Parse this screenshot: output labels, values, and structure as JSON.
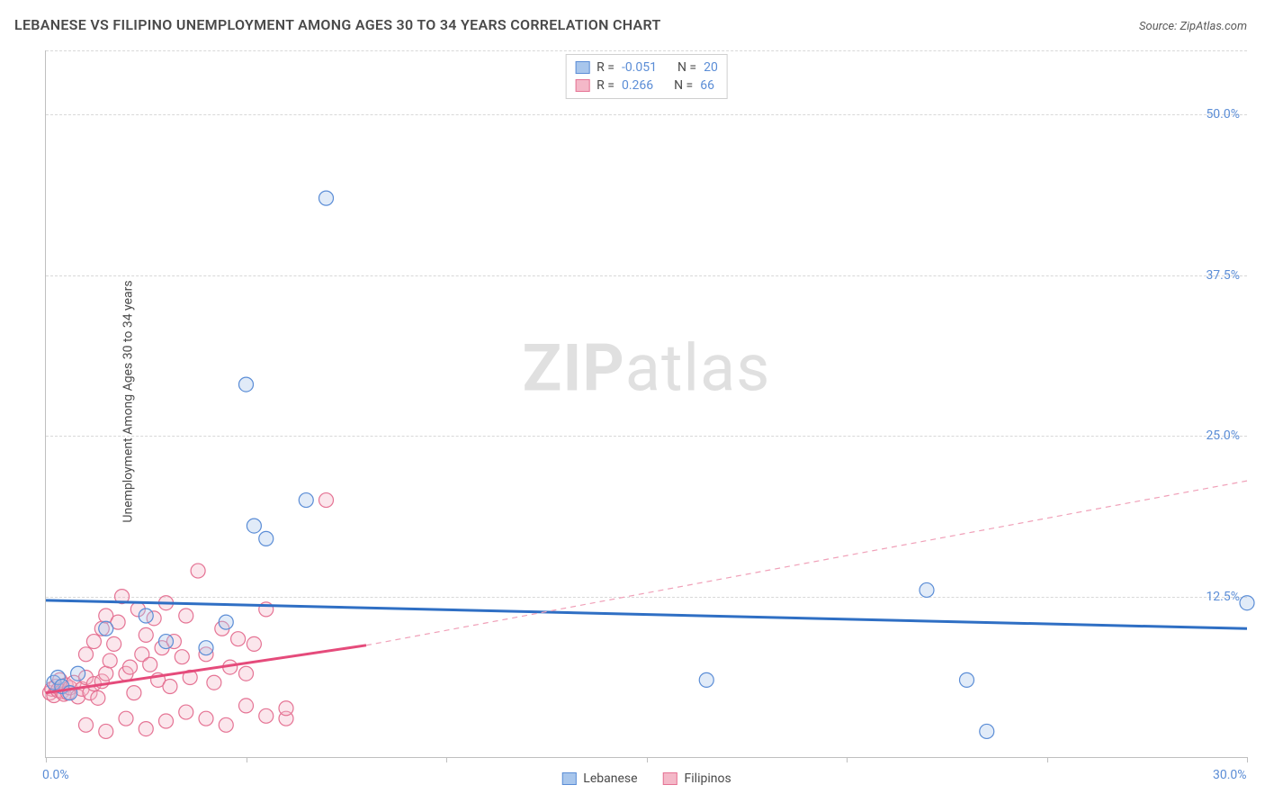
{
  "title": "LEBANESE VS FILIPINO UNEMPLOYMENT AMONG AGES 30 TO 34 YEARS CORRELATION CHART",
  "source_label": "Source: ",
  "source_value": "ZipAtlas.com",
  "y_axis_label": "Unemployment Among Ages 30 to 34 years",
  "watermark_zip": "ZIP",
  "watermark_atlas": "atlas",
  "chart": {
    "type": "scatter",
    "xlim": [
      0,
      30
    ],
    "ylim": [
      0,
      55
    ],
    "xtick_positions": [
      0,
      5,
      10,
      15,
      20,
      25,
      30
    ],
    "xtick_labels_visible": {
      "0": "0.0%",
      "30": "30.0%"
    },
    "ytick_positions": [
      12.5,
      25.0,
      37.5,
      50.0,
      55.0
    ],
    "ytick_labels_visible": {
      "12.5": "12.5%",
      "25.0": "25.0%",
      "37.5": "37.5%",
      "50.0": "50.0%"
    },
    "grid_color": "#d8d8d8",
    "grid_dash": "4,4",
    "background_color": "#ffffff",
    "marker_radius": 8,
    "marker_stroke_width": 1.2,
    "marker_fill_opacity": 0.35,
    "series": [
      {
        "name": "Lebanese",
        "color_fill": "#a8c6ec",
        "color_stroke": "#5b8dd6",
        "R": "-0.051",
        "N": "20",
        "points": [
          [
            0.2,
            5.8
          ],
          [
            0.3,
            6.2
          ],
          [
            0.4,
            5.5
          ],
          [
            0.6,
            5.0
          ],
          [
            0.8,
            6.5
          ],
          [
            1.5,
            10.0
          ],
          [
            2.5,
            11.0
          ],
          [
            3.0,
            9.0
          ],
          [
            4.0,
            8.5
          ],
          [
            4.5,
            10.5
          ],
          [
            5.0,
            29.0
          ],
          [
            5.2,
            18.0
          ],
          [
            5.5,
            17.0
          ],
          [
            6.5,
            20.0
          ],
          [
            7.0,
            43.5
          ],
          [
            16.5,
            6.0
          ],
          [
            22.0,
            13.0
          ],
          [
            23.0,
            6.0
          ],
          [
            23.5,
            2.0
          ],
          [
            30.0,
            12.0
          ]
        ],
        "trend_line": {
          "x1": 0,
          "y1": 12.2,
          "x2": 30,
          "y2": 10.0,
          "color": "#2f6fc4",
          "width": 3,
          "dash": "none"
        },
        "trend_dash_extension": null
      },
      {
        "name": "Filipinos",
        "color_fill": "#f4b8c8",
        "color_stroke": "#e57394",
        "R": "0.266",
        "N": "66",
        "points": [
          [
            0.1,
            5.0
          ],
          [
            0.15,
            5.3
          ],
          [
            0.2,
            4.8
          ],
          [
            0.25,
            5.5
          ],
          [
            0.3,
            5.2
          ],
          [
            0.35,
            6.0
          ],
          [
            0.4,
            5.1
          ],
          [
            0.45,
            4.9
          ],
          [
            0.5,
            5.6
          ],
          [
            0.55,
            5.0
          ],
          [
            0.6,
            5.4
          ],
          [
            0.7,
            5.8
          ],
          [
            0.8,
            4.7
          ],
          [
            0.9,
            5.3
          ],
          [
            1.0,
            6.2
          ],
          [
            1.1,
            5.0
          ],
          [
            1.2,
            5.7
          ],
          [
            1.3,
            4.6
          ],
          [
            1.4,
            5.9
          ],
          [
            1.5,
            6.5
          ],
          [
            1.0,
            8.0
          ],
          [
            1.2,
            9.0
          ],
          [
            1.4,
            10.0
          ],
          [
            1.5,
            11.0
          ],
          [
            1.6,
            7.5
          ],
          [
            1.7,
            8.8
          ],
          [
            1.8,
            10.5
          ],
          [
            1.9,
            12.5
          ],
          [
            2.0,
            6.5
          ],
          [
            2.1,
            7.0
          ],
          [
            2.2,
            5.0
          ],
          [
            2.3,
            11.5
          ],
          [
            2.4,
            8.0
          ],
          [
            2.5,
            9.5
          ],
          [
            2.6,
            7.2
          ],
          [
            2.7,
            10.8
          ],
          [
            2.8,
            6.0
          ],
          [
            2.9,
            8.5
          ],
          [
            3.0,
            12.0
          ],
          [
            3.1,
            5.5
          ],
          [
            3.2,
            9.0
          ],
          [
            3.4,
            7.8
          ],
          [
            3.5,
            11.0
          ],
          [
            3.6,
            6.2
          ],
          [
            3.8,
            14.5
          ],
          [
            4.0,
            8.0
          ],
          [
            4.2,
            5.8
          ],
          [
            4.4,
            10.0
          ],
          [
            4.6,
            7.0
          ],
          [
            4.8,
            9.2
          ],
          [
            5.0,
            6.5
          ],
          [
            5.2,
            8.8
          ],
          [
            5.5,
            11.5
          ],
          [
            1.0,
            2.5
          ],
          [
            1.5,
            2.0
          ],
          [
            2.0,
            3.0
          ],
          [
            2.5,
            2.2
          ],
          [
            3.0,
            2.8
          ],
          [
            3.5,
            3.5
          ],
          [
            4.0,
            3.0
          ],
          [
            4.5,
            2.5
          ],
          [
            5.0,
            4.0
          ],
          [
            5.5,
            3.2
          ],
          [
            6.0,
            3.0
          ],
          [
            6.0,
            3.8
          ],
          [
            7.0,
            20.0
          ]
        ],
        "trend_line": {
          "x1": 0,
          "y1": 5.0,
          "x2": 8,
          "y2": 8.7,
          "color": "#e54b7b",
          "width": 3,
          "dash": "none"
        },
        "trend_dash_extension": {
          "x1": 8,
          "y1": 8.7,
          "x2": 30,
          "y2": 21.5,
          "color": "#f0a0b8",
          "width": 1.2,
          "dash": "6,5"
        }
      }
    ],
    "legend_top": {
      "border_color": "#cfcfcf",
      "rows": [
        {
          "swatch_fill": "#a8c6ec",
          "swatch_stroke": "#5b8dd6",
          "r_label": "R =",
          "r_value": "-0.051",
          "n_label": "N =",
          "n_value": "20"
        },
        {
          "swatch_fill": "#f4b8c8",
          "swatch_stroke": "#e57394",
          "r_label": "R =",
          "r_value": " 0.266",
          "n_label": "N =",
          "n_value": "66"
        }
      ]
    },
    "legend_bottom": [
      {
        "swatch_fill": "#a8c6ec",
        "swatch_stroke": "#5b8dd6",
        "label": "Lebanese"
      },
      {
        "swatch_fill": "#f4b8c8",
        "swatch_stroke": "#e57394",
        "label": "Filipinos"
      }
    ]
  },
  "colors": {
    "title_text": "#4a4a4a",
    "axis_value_text": "#5b8dd6",
    "watermark": "#a8a8a8"
  }
}
